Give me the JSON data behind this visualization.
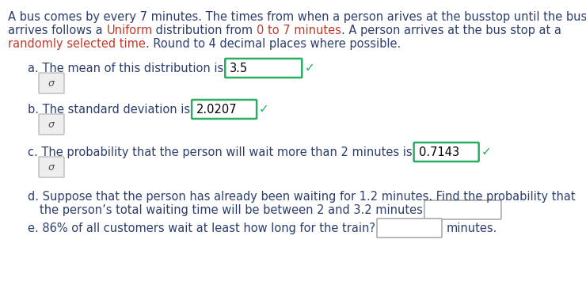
{
  "bg_color": "#ffffff",
  "text_color": "#2c3e6b",
  "highlight_color": "#c0392b",
  "box_border_green": "#27ae60",
  "box_border_gray": "#aaaaaa",
  "para_line1": "A bus comes by every 7 minutes. The times from when a person arives at the busstop until the bus",
  "para_line2_parts": [
    [
      "arrives follows a ",
      false
    ],
    [
      "Uniform",
      true
    ],
    [
      " distribution from ",
      false
    ],
    [
      "0 to 7 minutes",
      true
    ],
    [
      ". A person arrives at the bus stop at a",
      false
    ]
  ],
  "para_line3_parts": [
    [
      "randomly selected time",
      true
    ],
    [
      ". Round to 4 decimal places where possible.",
      false
    ]
  ],
  "line_a": "a. The mean of this distribution is",
  "val_a": "3.5",
  "line_b": "b. The standard deviation is",
  "val_b": "2.0207",
  "line_c": "c. The probability that the person will wait more than 2 minutes is",
  "val_c": "0.7143",
  "line_d1": "d. Suppose that the person has already been waiting for 1.2 minutes. Find the probability that",
  "line_d2": "the person’s total waiting time will be between 2 and 3.2 minutes",
  "line_e": "e. 86% of all customers wait at least how long for the train?",
  "suffix_e": "minutes.",
  "fontsize": 10.5
}
